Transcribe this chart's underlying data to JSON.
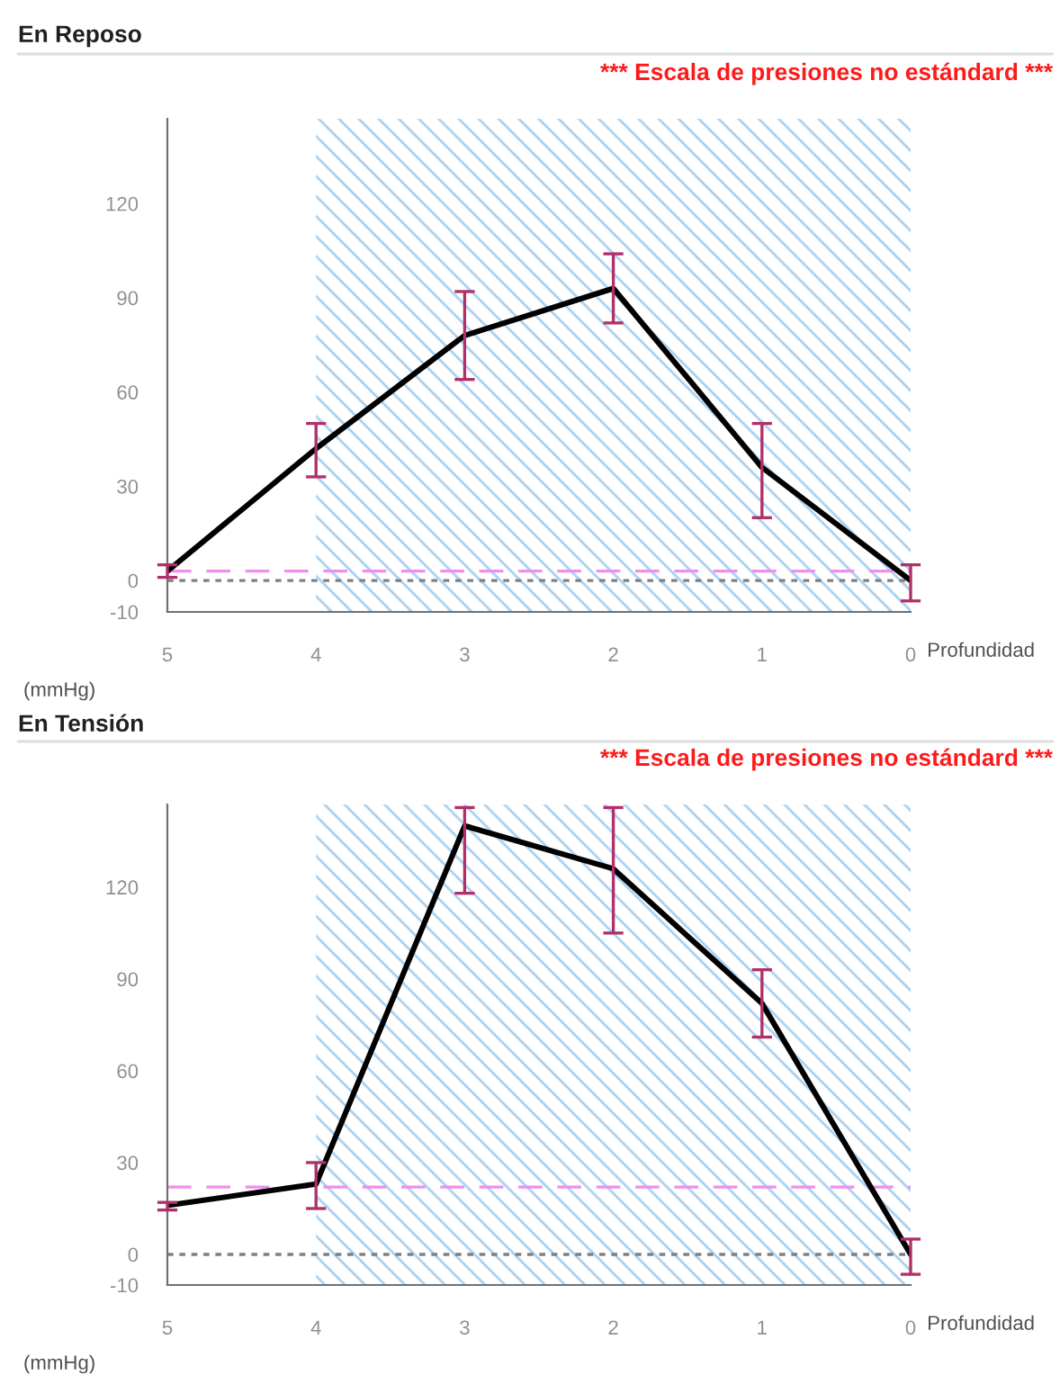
{
  "chart_data": [
    {
      "type": "line",
      "title": "En Reposo",
      "annotations": [
        "*** Escala de presiones no estándard ***"
      ],
      "xlabel": "Profundidad",
      "ylabel": "(mmHg)",
      "x": [
        5,
        4,
        3,
        2,
        1,
        0
      ],
      "series": [
        {
          "color": "#000000",
          "values": [
            3,
            42,
            78,
            93,
            36,
            0
          ],
          "errors": [
            [
              1,
              5
            ],
            [
              33,
              50
            ],
            [
              64,
              92
            ],
            [
              82,
              104
            ],
            [
              20,
              50
            ],
            [
              -6.5,
              5
            ]
          ]
        }
      ],
      "xlim": [
        5,
        0
      ],
      "xticks": [
        5,
        4,
        3,
        2,
        1,
        0
      ],
      "ylim": [
        -10,
        147
      ],
      "yticks": [
        -10,
        0,
        30,
        60,
        90,
        120
      ],
      "ref_lines": [
        {
          "axis": "y",
          "value": 0,
          "color": "#808080",
          "line_style": "dotted"
        },
        {
          "axis": "y",
          "value": 3,
          "color": "#f08ef0",
          "line_style": "dashed"
        }
      ],
      "bands": [
        {
          "axis": "x",
          "from": 4,
          "to": 0,
          "color": "#a8d0f0"
        }
      ],
      "grid": false,
      "legend": false
    },
    {
      "type": "line",
      "title": "En Tensión",
      "annotations": [
        "*** Escala de presiones no estándard ***"
      ],
      "xlabel": "Profundidad",
      "ylabel": "(mmHg)",
      "x": [
        5,
        4,
        3,
        2,
        1,
        0
      ],
      "series": [
        {
          "color": "#000000",
          "values": [
            16,
            23,
            140,
            126,
            82,
            0
          ],
          "errors": [
            [
              14.5,
              17
            ],
            [
              15,
              30
            ],
            [
              118,
              146
            ],
            [
              105,
              146
            ],
            [
              71,
              93
            ],
            [
              -6.5,
              5
            ]
          ]
        }
      ],
      "xlim": [
        5,
        0
      ],
      "xticks": [
        5,
        4,
        3,
        2,
        1,
        0
      ],
      "ylim": [
        -10,
        147
      ],
      "yticks": [
        -10,
        0,
        30,
        60,
        90,
        120
      ],
      "ref_lines": [
        {
          "axis": "y",
          "value": 0,
          "color": "#808080",
          "line_style": "dotted"
        },
        {
          "axis": "y",
          "value": 22,
          "color": "#f08ef0",
          "line_style": "dashed"
        }
      ],
      "bands": [
        {
          "axis": "x",
          "from": 4,
          "to": 0,
          "color": "#a8d0f0"
        }
      ],
      "grid": false,
      "legend": false
    }
  ]
}
